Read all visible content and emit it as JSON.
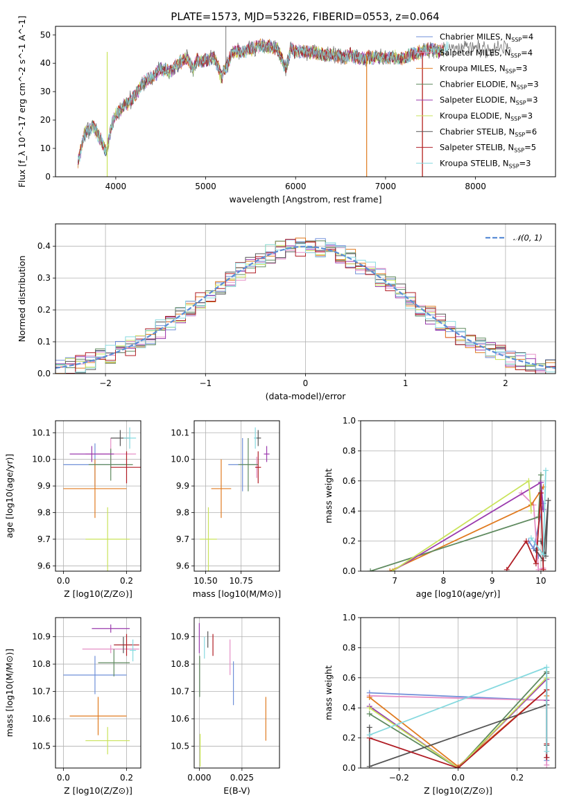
{
  "figure": {
    "title": "PLATE=1573, MJD=53226, FIBERID=0553, z=0.064"
  },
  "colors": {
    "Chabrier MILES": "#6f8fd8",
    "Salpeter MILES": "#e58fc6",
    "Kroupa MILES": "#e07a1f",
    "Chabrier ELODIE": "#5f8a5f",
    "Salpeter ELODIE": "#9a3aad",
    "Kroupa ELODIE": "#c9e35a",
    "Chabrier STELIB": "#555555",
    "Salpeter STELIB": "#b01c24",
    "Kroupa STELIB": "#86d9df",
    "gauss": "#5b8dd6",
    "grid": "#b0b0b0"
  },
  "chart_data": [
    {
      "id": "spectrum",
      "type": "line",
      "title": "PLATE=1573, MJD=53226, FIBERID=0553, z=0.064",
      "xlabel": "wavelength [Angstrom, rest frame]",
      "ylabel": "Flux [f_λ 10^-17 erg cm^-2 s^-1 A^-1]",
      "xlim": [
        3330,
        8890
      ],
      "ylim": [
        0,
        53
      ],
      "xticks": [
        4000,
        5000,
        6000,
        7000,
        8000
      ],
      "yticks": [
        0,
        10,
        20,
        30,
        40,
        50
      ],
      "legend": [
        "Chabrier MILES, N_SSP=4",
        "Salpeter MILES, N_SSP=4",
        "Kroupa MILES, N_SSP=3",
        "Chabrier ELODIE, N_SSP=3",
        "Salpeter ELODIE, N_SSP=3",
        "Kroupa ELODIE, N_SSP=3",
        "Chabrier STELIB, N_SSP=6",
        "Salpeter STELIB, N_SSP=5",
        "Kroupa STELIB, N_SSP=3"
      ],
      "legend_position": "upper right",
      "envelope": {
        "x": [
          3580,
          3650,
          3750,
          3850,
          3900,
          3950,
          4000,
          4100,
          4200,
          4300,
          4400,
          4500,
          4600,
          4700,
          4800,
          4862,
          4900,
          5000,
          5100,
          5175,
          5250,
          5300,
          5400,
          5500,
          5600,
          5700,
          5800,
          5893,
          5950,
          6000,
          6100,
          6200,
          6300,
          6400,
          6563,
          6600,
          6700,
          6800,
          6900,
          7000,
          7100,
          7200,
          7300,
          7400,
          7500,
          7600,
          7700,
          7800,
          7900,
          8000,
          8100,
          8200,
          8300,
          8400,
          8500
        ],
        "y": [
          5,
          15,
          18,
          12,
          8,
          18,
          22,
          25,
          28,
          33,
          35,
          38,
          37,
          40,
          42,
          38,
          41,
          41,
          42,
          35,
          40,
          44,
          44,
          45,
          46,
          46,
          45,
          38,
          45,
          44,
          44,
          44,
          43,
          43,
          42,
          43,
          42,
          42,
          42,
          42,
          42,
          42,
          43,
          44,
          45,
          44,
          46,
          45,
          46,
          46,
          45,
          45,
          46,
          45,
          45
        ]
      },
      "drops": [
        {
          "x": 3905,
          "y": 0,
          "series": "Kroupa ELODIE"
        },
        {
          "x": 6790,
          "y": 0,
          "series": "Kroupa MILES"
        },
        {
          "x": 7410,
          "y": 0,
          "series": "Kroupa MILES"
        },
        {
          "x": 7410,
          "y": 0,
          "series": "Salpeter STELIB"
        }
      ]
    },
    {
      "id": "residuals",
      "type": "bar",
      "xlabel": "(data-model)/error",
      "ylabel": "Normed distribution",
      "xlim": [
        -2.5,
        2.5
      ],
      "ylim": [
        0,
        0.47
      ],
      "xticks": [
        -2,
        -1,
        0,
        1,
        2
      ],
      "xtick_labels": [
        "−2",
        "−1",
        "0",
        "1",
        "2"
      ],
      "yticks": [
        0.0,
        0.1,
        0.2,
        0.3,
        0.4
      ],
      "bin_width": 0.1,
      "legend": "𝒩(0, 1)",
      "legend_position": "upper right"
    },
    {
      "id": "age_vs_Z",
      "type": "scatter",
      "xlabel": "Z [log10(Z/Z⊙)]",
      "ylabel": "age  [log10(age/yr)]",
      "xlim": [
        -0.025,
        0.245
      ],
      "ylim": [
        9.58,
        10.145
      ],
      "xticks": [
        0.0,
        0.2
      ],
      "yticks": [
        9.6,
        9.7,
        9.8,
        9.9,
        10.0,
        10.1
      ],
      "points": [
        {
          "series": "Chabrier MILES",
          "x": 0.1,
          "y": 9.98,
          "xerr": 0.1,
          "yerr": 0.08
        },
        {
          "series": "Salpeter MILES",
          "x": 0.15,
          "y": 10.02,
          "xerr": 0.08,
          "yerr": 0.06
        },
        {
          "series": "Kroupa MILES",
          "x": 0.1,
          "y": 9.89,
          "xerr": 0.1,
          "yerr": 0.11
        },
        {
          "series": "Chabrier ELODIE",
          "x": 0.15,
          "y": 9.98,
          "xerr": 0.07,
          "yerr": 0.06
        },
        {
          "series": "Salpeter ELODIE",
          "x": 0.09,
          "y": 10.02,
          "xerr": 0.07,
          "yerr": 0.03
        },
        {
          "series": "Kroupa ELODIE",
          "x": 0.14,
          "y": 9.7,
          "xerr": 0.07,
          "yerr": 0.12
        },
        {
          "series": "Chabrier STELIB",
          "x": 0.18,
          "y": 10.08,
          "xerr": 0.03,
          "yerr": 0.03
        },
        {
          "series": "Salpeter STELIB",
          "x": 0.2,
          "y": 9.97,
          "xerr": 0.05,
          "yerr": 0.06
        },
        {
          "series": "Kroupa STELIB",
          "x": 0.21,
          "y": 10.08,
          "xerr": 0.02,
          "yerr": 0.04
        }
      ]
    },
    {
      "id": "age_vs_mass",
      "type": "scatter",
      "xlabel": "mass [log10(M/M⊙)]",
      "xlim": [
        10.42,
        11.02
      ],
      "ylim": [
        9.58,
        10.145
      ],
      "xticks": [
        10.5,
        10.75
      ],
      "xtick_labels": [
        "10.50",
        "10.75"
      ],
      "yticks": [
        9.6,
        9.7,
        9.8,
        9.9,
        10.0,
        10.1
      ],
      "points": [
        {
          "series": "Chabrier MILES",
          "x": 10.76,
          "y": 9.98,
          "xerr": 0.1,
          "yerr": 0.1
        },
        {
          "series": "Salpeter MILES",
          "x": 10.86,
          "y": 9.97,
          "xerr": 0.01,
          "yerr": 0.04
        },
        {
          "series": "Kroupa MILES",
          "x": 10.61,
          "y": 9.89,
          "xerr": 0.07,
          "yerr": 0.11
        },
        {
          "series": "Chabrier ELODIE",
          "x": 10.8,
          "y": 9.98,
          "xerr": 0.07,
          "yerr": 0.1
        },
        {
          "series": "Salpeter ELODIE",
          "x": 10.93,
          "y": 10.02,
          "xerr": 0.02,
          "yerr": 0.03
        },
        {
          "series": "Kroupa ELODIE",
          "x": 10.52,
          "y": 9.7,
          "xerr": 0.06,
          "yerr": 0.12
        },
        {
          "series": "Chabrier STELIB",
          "x": 10.87,
          "y": 10.08,
          "xerr": 0.02,
          "yerr": 0.03
        },
        {
          "series": "Salpeter STELIB",
          "x": 10.87,
          "y": 9.97,
          "xerr": 0.02,
          "yerr": 0.06
        },
        {
          "series": "Kroupa STELIB",
          "x": 10.85,
          "y": 10.08,
          "xerr": 0.01,
          "yerr": 0.04
        }
      ]
    },
    {
      "id": "weight_vs_age",
      "type": "line",
      "xlabel": "age  [log10(age/yr)]",
      "ylabel": "mass weight",
      "xlim": [
        6.3,
        10.3
      ],
      "ylim": [
        0,
        1.0
      ],
      "xticks": [
        7,
        8,
        9,
        10
      ],
      "yticks": [
        0.0,
        0.2,
        0.4,
        0.6,
        0.8,
        1.0
      ],
      "series": [
        {
          "name": "Chabrier MILES",
          "x": [
            9.95,
            9.75,
            9.85,
            10.05
          ],
          "y": [
            0.1,
            0.2,
            0.15,
            0.45
          ]
        },
        {
          "name": "Salpeter MILES",
          "x": [
            9.6,
            9.85,
            9.95,
            10.05
          ],
          "y": [
            0.52,
            0.44,
            0.01,
            0.02
          ]
        },
        {
          "name": "Kroupa MILES",
          "x": [
            6.9,
            9.8,
            10.05
          ],
          "y": [
            0.0,
            0.44,
            0.56
          ]
        },
        {
          "name": "Chabrier ELODIE",
          "x": [
            6.5,
            9.95,
            10.0
          ],
          "y": [
            0.0,
            0.36,
            0.64
          ]
        },
        {
          "name": "Salpeter ELODIE",
          "x": [
            6.95,
            10.0,
            10.05
          ],
          "y": [
            0.0,
            0.59,
            0.41
          ]
        },
        {
          "name": "Kroupa ELODIE",
          "x": [
            6.95,
            9.75,
            9.8
          ],
          "y": [
            0.0,
            0.6,
            0.4
          ]
        },
        {
          "name": "Chabrier STELIB",
          "x": [
            9.9,
            10.05,
            10.15,
            10.1,
            10.0
          ],
          "y": [
            0.14,
            0.07,
            0.47,
            0.1,
            0.2
          ]
        },
        {
          "name": "Salpeter STELIB",
          "x": [
            9.3,
            9.7,
            9.9,
            10.0,
            10.05
          ],
          "y": [
            0.01,
            0.2,
            0.05,
            0.52,
            0.01
          ]
        },
        {
          "name": "Kroupa STELIB",
          "x": [
            9.8,
            10.05,
            10.1
          ],
          "y": [
            0.22,
            0.11,
            0.67
          ]
        }
      ]
    },
    {
      "id": "mass_vs_Z",
      "type": "scatter",
      "xlabel": "Z [log10(Z/Z⊙)]",
      "ylabel": "mass [log10(M/M⊙)]",
      "xlim": [
        -0.025,
        0.245
      ],
      "ylim": [
        10.42,
        10.97
      ],
      "xticks": [
        0.0,
        0.2
      ],
      "yticks": [
        10.5,
        10.6,
        10.7,
        10.8,
        10.9
      ],
      "points": [
        {
          "series": "Chabrier MILES",
          "x": 0.1,
          "y": 10.76,
          "xerr": 0.1,
          "yerr": 0.07
        },
        {
          "series": "Salpeter MILES",
          "x": 0.15,
          "y": 10.855,
          "xerr": 0.09,
          "yerr": 0.015
        },
        {
          "series": "Kroupa MILES",
          "x": 0.11,
          "y": 10.61,
          "xerr": 0.09,
          "yerr": 0.07
        },
        {
          "series": "Chabrier ELODIE",
          "x": 0.16,
          "y": 10.805,
          "xerr": 0.05,
          "yerr": 0.05
        },
        {
          "series": "Salpeter ELODIE",
          "x": 0.15,
          "y": 10.93,
          "xerr": 0.06,
          "yerr": 0.015
        },
        {
          "series": "Kroupa ELODIE",
          "x": 0.14,
          "y": 10.52,
          "xerr": 0.07,
          "yerr": 0.05
        },
        {
          "series": "Chabrier STELIB",
          "x": 0.19,
          "y": 10.87,
          "xerr": 0.03,
          "yerr": 0.03
        },
        {
          "series": "Salpeter STELIB",
          "x": 0.2,
          "y": 10.87,
          "xerr": 0.04,
          "yerr": 0.04
        },
        {
          "series": "Kroupa STELIB",
          "x": 0.22,
          "y": 10.85,
          "xerr": 0.01,
          "yerr": 0.04
        }
      ]
    },
    {
      "id": "mass_vs_EBV",
      "type": "scatter",
      "xlabel": "E(B-V)",
      "xlim": [
        -0.003,
        0.047
      ],
      "ylim": [
        10.42,
        10.97
      ],
      "xticks": [
        0.0,
        0.025
      ],
      "xtick_labels": [
        "0.000",
        "0.025"
      ],
      "yticks": [
        10.5,
        10.6,
        10.7,
        10.8,
        10.9
      ],
      "points": [
        {
          "series": "Chabrier MILES",
          "x": 0.02,
          "y": 10.73,
          "yerr": 0.08
        },
        {
          "series": "Salpeter MILES",
          "x": 0.018,
          "y": 10.825,
          "yerr": 0.065
        },
        {
          "series": "Kroupa MILES",
          "x": 0.039,
          "y": 10.6,
          "yerr": 0.08
        },
        {
          "series": "Chabrier ELODIE",
          "x": 0.0002,
          "y": 10.755,
          "yerr": 0.075
        },
        {
          "series": "Salpeter ELODIE",
          "x": 0.0,
          "y": 10.895,
          "yerr": 0.055
        },
        {
          "series": "Kroupa ELODIE",
          "x": 0.0005,
          "y": 10.485,
          "yerr": 0.06
        },
        {
          "series": "Chabrier STELIB",
          "x": 0.005,
          "y": 10.89,
          "yerr": 0.03
        },
        {
          "series": "Salpeter STELIB",
          "x": 0.008,
          "y": 10.87,
          "yerr": 0.04
        },
        {
          "series": "Kroupa STELIB",
          "x": 0.003,
          "y": 10.86,
          "yerr": 0.04
        }
      ]
    },
    {
      "id": "weight_vs_Z",
      "type": "line",
      "xlabel": "Z [log10(Z/Z⊙)]",
      "ylabel": "mass weight",
      "xlim": [
        -0.33,
        0.33
      ],
      "ylim": [
        0,
        1.0
      ],
      "xticks": [
        -0.2,
        0.0,
        0.2
      ],
      "xtick_labels": [
        "−0.2",
        "0.0",
        "0.2"
      ],
      "yticks": [
        0.0,
        0.2,
        0.4,
        0.6,
        0.8,
        1.0
      ],
      "series": [
        {
          "name": "Chabrier MILES",
          "x": [
            -0.3,
            0.3,
            0.3
          ],
          "y": [
            0.5,
            0.45,
            0.05
          ]
        },
        {
          "name": "Salpeter MILES",
          "x": [
            -0.3,
            0.3,
            0.3
          ],
          "y": [
            0.48,
            0.45,
            0.02
          ]
        },
        {
          "name": "Kroupa MILES",
          "x": [
            -0.3,
            0.0,
            0.3,
            0.3
          ],
          "y": [
            0.47,
            0.01,
            0.52,
            0.48
          ]
        },
        {
          "name": "Chabrier ELODIE",
          "x": [
            -0.3,
            0.0,
            0.3
          ],
          "y": [
            0.36,
            0.0,
            0.64
          ]
        },
        {
          "name": "Salpeter ELODIE",
          "x": [
            -0.3,
            0.0,
            0.3,
            0.3
          ],
          "y": [
            0.41,
            0.0,
            0.59,
            0.45
          ]
        },
        {
          "name": "Kroupa ELODIE",
          "x": [
            -0.3,
            0.0,
            0.3
          ],
          "y": [
            0.4,
            0.0,
            0.6
          ]
        },
        {
          "name": "Chabrier STELIB",
          "x": [
            -0.3,
            -0.3,
            0.3,
            0.3,
            0.3,
            0.3
          ],
          "y": [
            0.27,
            0.01,
            0.42,
            0.15,
            0.07,
            0.63
          ]
        },
        {
          "name": "Salpeter STELIB",
          "x": [
            -0.3,
            0.0,
            0.3,
            0.3,
            0.3
          ],
          "y": [
            0.2,
            0.0,
            0.52,
            0.16,
            0.07
          ]
        },
        {
          "name": "Kroupa STELIB",
          "x": [
            -0.3,
            0.3,
            0.3
          ],
          "y": [
            0.22,
            0.67,
            0.11
          ]
        }
      ]
    }
  ]
}
